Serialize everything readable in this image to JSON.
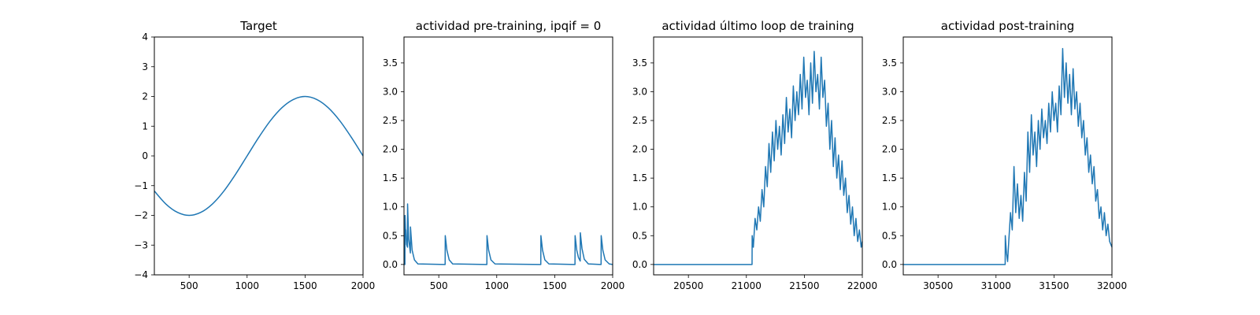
{
  "chart_data": [
    {
      "type": "line",
      "title": "Target",
      "xlim": [
        200,
        2000
      ],
      "ylim": [
        -4,
        4
      ],
      "xticks": [
        500,
        1000,
        1500,
        2000
      ],
      "yticks": [
        -4,
        -3,
        -2,
        -1,
        0,
        1,
        2,
        3,
        4
      ],
      "line_color": "#1f77b4",
      "series": [
        {
          "x": [
            200,
            300,
            400,
            500,
            600,
            700,
            800,
            900,
            1000,
            1100,
            1200,
            1300,
            1400,
            1500,
            1600,
            1700,
            1800,
            1900,
            2000
          ],
          "y": [
            -1.18,
            -1.62,
            -1.9,
            -2.0,
            -1.9,
            -1.62,
            -1.18,
            -0.62,
            0.0,
            0.62,
            1.18,
            1.62,
            1.9,
            2.0,
            1.9,
            1.62,
            1.18,
            0.62,
            0.0
          ]
        }
      ]
    },
    {
      "type": "line",
      "title": "actividad pre-training, ipqif = 0",
      "xlim": [
        200,
        2000
      ],
      "ylim": [
        -0.18,
        3.95
      ],
      "xticks": [
        500,
        1000,
        1500,
        2000
      ],
      "yticks": [
        0.0,
        0.5,
        1.0,
        1.5,
        2.0,
        2.5,
        3.0,
        3.5
      ],
      "line_color": "#1f77b4",
      "series": [
        {
          "x": [
            200,
            208,
            209,
            215,
            216,
            222,
            230,
            231,
            240,
            255,
            256,
            270,
            290,
            320,
            555,
            556,
            570,
            590,
            620,
            915,
            916,
            930,
            950,
            985,
            1380,
            1381,
            1395,
            1415,
            1450,
            1675,
            1676,
            1690,
            1705,
            1720,
            1721,
            1735,
            1755,
            1790,
            1900,
            1901,
            1915,
            1935,
            1970,
            2000
          ],
          "y": [
            0,
            0,
            0.85,
            0.5,
            0.6,
            0.35,
            0.3,
            1.05,
            0.45,
            0.2,
            0.65,
            0.25,
            0.08,
            0.01,
            0,
            0.5,
            0.25,
            0.08,
            0.01,
            0,
            0.5,
            0.25,
            0.08,
            0.01,
            0,
            0.5,
            0.25,
            0.08,
            0.01,
            0,
            0.5,
            0.25,
            0.12,
            0.06,
            0.55,
            0.28,
            0.09,
            0.01,
            0,
            0.5,
            0.25,
            0.08,
            0.01,
            0
          ]
        }
      ]
    },
    {
      "type": "line",
      "title": "actividad último loop de training",
      "xlim": [
        20200,
        22000
      ],
      "ylim": [
        -0.18,
        3.95
      ],
      "xticks": [
        20500,
        21000,
        21500,
        22000
      ],
      "yticks": [
        0.0,
        0.5,
        1.0,
        1.5,
        2.0,
        2.5,
        3.0,
        3.5
      ],
      "line_color": "#1f77b4",
      "series": [
        {
          "x": [
            20200,
            20500,
            21000,
            21049,
            21050,
            21060,
            21075,
            21090,
            21105,
            21120,
            21135,
            21150,
            21165,
            21180,
            21195,
            21210,
            21225,
            21240,
            21255,
            21270,
            21285,
            21300,
            21315,
            21330,
            21345,
            21360,
            21375,
            21390,
            21405,
            21420,
            21435,
            21450,
            21465,
            21480,
            21495,
            21510,
            21525,
            21540,
            21555,
            21570,
            21585,
            21600,
            21615,
            21630,
            21645,
            21660,
            21675,
            21690,
            21705,
            21720,
            21735,
            21750,
            21765,
            21780,
            21795,
            21810,
            21825,
            21840,
            21855,
            21870,
            21885,
            21900,
            21915,
            21930,
            21945,
            21960,
            21975,
            21990,
            22000
          ],
          "y": [
            0,
            0,
            0,
            0,
            0.5,
            0.3,
            0.8,
            0.6,
            1.0,
            0.75,
            1.3,
            1.0,
            1.7,
            1.35,
            2.1,
            1.6,
            2.3,
            1.8,
            2.5,
            2.0,
            2.4,
            1.9,
            2.6,
            2.1,
            2.9,
            2.3,
            2.7,
            2.2,
            3.1,
            2.5,
            3.0,
            2.6,
            3.3,
            2.7,
            3.6,
            2.9,
            3.2,
            2.6,
            3.5,
            2.8,
            3.7,
            3.0,
            3.3,
            2.7,
            3.6,
            2.9,
            3.2,
            2.4,
            2.8,
            2.0,
            2.5,
            1.7,
            2.2,
            1.5,
            1.9,
            1.3,
            1.8,
            1.2,
            1.5,
            0.9,
            1.2,
            0.7,
            1.0,
            0.5,
            0.8,
            0.4,
            0.6,
            0.3,
            0.4
          ]
        }
      ]
    },
    {
      "type": "line",
      "title": "actividad post-training",
      "xlim": [
        30200,
        32000
      ],
      "ylim": [
        -0.18,
        3.95
      ],
      "xticks": [
        30500,
        31000,
        31500,
        32000
      ],
      "yticks": [
        0.0,
        0.5,
        1.0,
        1.5,
        2.0,
        2.5,
        3.0,
        3.5
      ],
      "line_color": "#1f77b4",
      "series": [
        {
          "x": [
            30200,
            30500,
            31000,
            31079,
            31080,
            31090,
            31100,
            31110,
            31125,
            31140,
            31155,
            31170,
            31185,
            31200,
            31215,
            31230,
            31245,
            31260,
            31275,
            31290,
            31305,
            31320,
            31335,
            31350,
            31365,
            31380,
            31395,
            31410,
            31425,
            31440,
            31455,
            31470,
            31485,
            31500,
            31515,
            31530,
            31545,
            31560,
            31575,
            31590,
            31605,
            31620,
            31635,
            31650,
            31665,
            31680,
            31695,
            31710,
            31725,
            31740,
            31755,
            31770,
            31785,
            31800,
            31815,
            31830,
            31845,
            31860,
            31875,
            31890,
            31905,
            31920,
            31935,
            31950,
            31965,
            31980,
            32000
          ],
          "y": [
            0,
            0,
            0,
            0,
            0.5,
            0.2,
            0.05,
            0.4,
            0.9,
            0.6,
            1.7,
            0.9,
            1.4,
            0.8,
            1.2,
            0.75,
            1.6,
            1.1,
            2.3,
            1.6,
            2.6,
            1.9,
            2.3,
            1.7,
            2.5,
            2.0,
            2.7,
            2.2,
            2.5,
            2.1,
            2.8,
            2.3,
            3.0,
            2.5,
            2.8,
            2.3,
            3.1,
            2.6,
            3.75,
            2.9,
            3.5,
            2.8,
            3.3,
            2.6,
            3.4,
            2.7,
            3.0,
            2.4,
            2.8,
            2.2,
            2.5,
            1.9,
            2.2,
            1.6,
            1.9,
            1.4,
            1.7,
            1.1,
            1.3,
            0.8,
            1.0,
            0.6,
            0.9,
            0.5,
            0.7,
            0.4,
            0.3
          ]
        }
      ]
    }
  ]
}
